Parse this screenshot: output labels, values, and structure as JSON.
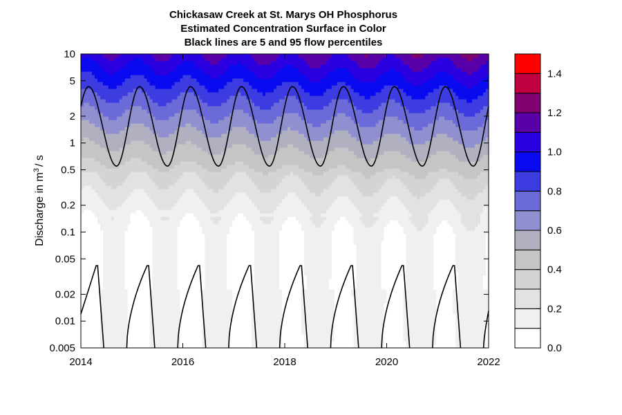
{
  "chart_data": {
    "type": "heatmap",
    "title_lines": [
      "Chickasaw Creek at St. Marys OH    Phosphorus",
      "Estimated Concentration Surface in Color",
      "Black lines are 5 and 95 flow percentiles"
    ],
    "ylabel_prefix": "Discharge in m",
    "ylabel_sup": "3",
    "ylabel_suffix": "/ s",
    "x_tick_labels": [
      "2014",
      "2016",
      "2018",
      "2020",
      "2022"
    ],
    "x_ticks": [
      2014,
      2016,
      2018,
      2020,
      2022
    ],
    "xlim": [
      2014,
      2022
    ],
    "y_scale": "log",
    "y_tick_labels": [
      "0.005",
      "0.01",
      "0.02",
      "0.05",
      "0.1",
      "0.2",
      "0.5",
      "1",
      "2",
      "5",
      "10"
    ],
    "y_ticks": [
      0.005,
      0.01,
      0.02,
      0.05,
      0.1,
      0.2,
      0.5,
      1,
      2,
      5,
      10
    ],
    "ylim": [
      0.005,
      10
    ],
    "colorbar": {
      "levels": [
        0.0,
        0.1,
        0.2,
        0.3,
        0.4,
        0.5,
        0.6,
        0.7,
        0.8,
        0.9,
        1.0,
        1.1,
        1.2,
        1.3,
        1.4,
        1.5
      ],
      "colors": [
        "#ffffff",
        "#f0f0f0",
        "#e2e2e2",
        "#d4d4d4",
        "#c5c5c5",
        "#b0b0c0",
        "#9090d0",
        "#6a6ad8",
        "#3c3ce0",
        "#0a0af0",
        "#2a00e0",
        "#5a00a8",
        "#800070",
        "#c00040",
        "#ff0000"
      ],
      "tick_labels": [
        "0.0",
        "0.2",
        "0.4",
        "0.6",
        "0.8",
        "1.0",
        "1.2",
        "1.4"
      ],
      "ticks": [
        0.0,
        0.2,
        0.4,
        0.6,
        0.8,
        1.0,
        1.2,
        1.4
      ]
    },
    "surface": {
      "description_values": "seasonal concentration pattern",
      "low_flow_min": 0.05,
      "high_flow_max": 1.3
    },
    "percentile_95": {
      "peak_discharge": 4.3,
      "trough_discharge": 0.55,
      "peak_dates": [
        2014.15,
        2015.15,
        2016.15,
        2017.15,
        2018.15,
        2019.15,
        2020.15,
        2021.15
      ],
      "trough_dates": [
        2014.7,
        2015.7,
        2016.7,
        2017.7,
        2018.7,
        2019.7,
        2020.7,
        2021.7
      ]
    },
    "percentile_5": {
      "peak_discharge": 0.042,
      "peak_dates": [
        2014.3,
        2015.3,
        2016.3,
        2017.3,
        2018.3,
        2019.3,
        2020.3,
        2021.3
      ],
      "zero_flow_start": [
        2014.45,
        2015.45,
        2016.45,
        2017.45,
        2018.45,
        2019.45,
        2020.45,
        2021.45
      ],
      "zero_flow_end": [
        2014.9,
        2015.9,
        2016.9,
        2017.9,
        2018.9,
        2019.9,
        2020.9,
        2021.9
      ]
    }
  }
}
